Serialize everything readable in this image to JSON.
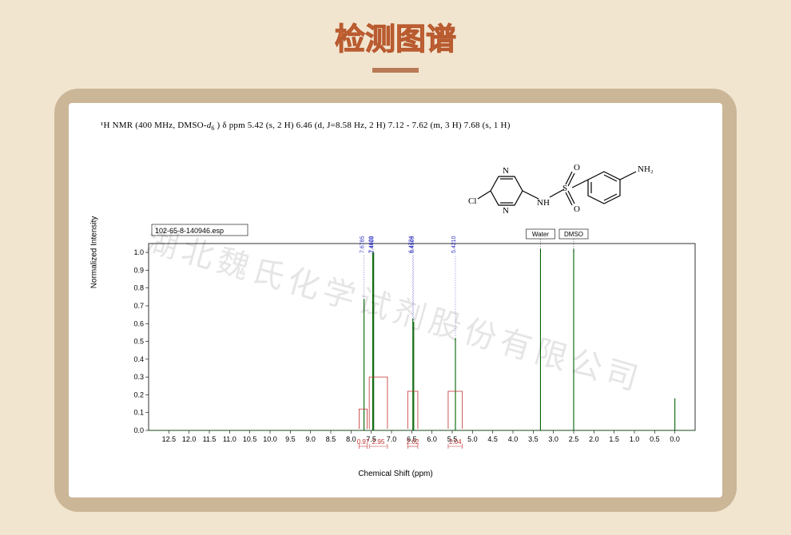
{
  "page": {
    "title": "检测图谱",
    "background_color": "#f2e5d0",
    "panel_color": "#cbb698",
    "title_color": "#d06a3a",
    "underline_color": "#b97a55"
  },
  "watermark": "湖北魏氏化学试剂股份有限公司",
  "nmr_caption": {
    "prefix": "¹H NMR (400 MHz, DMSO-",
    "solvent_italic": "d",
    "solvent_sub": "6",
    "rest": " ) δ ppm 5.42 (s, 2 H) 6.46 (d, J=8.58 Hz, 2 H) 7.12 - 7.62 (m, 3 H) 7.68 (s, 1 H)",
    "j_italic": "J"
  },
  "structure": {
    "cl_label": "Cl",
    "n_label": "N",
    "nh_label": "NH",
    "s_label": "S",
    "o_label": "O",
    "nh2_label": "NH₂",
    "line_color": "#000000",
    "text_color": "#000000"
  },
  "chart": {
    "type": "nmr-spectrum",
    "file_label": "102-65-8-140946.esp",
    "xlabel": "Chemical Shift (ppm)",
    "ylabel": "Normalized Intensity",
    "x_min": -0.5,
    "x_max": 13.0,
    "y_min": 0,
    "y_max": 1.05,
    "x_ticks": [
      12.5,
      12.0,
      11.5,
      11.0,
      10.5,
      10.0,
      9.5,
      9.0,
      8.5,
      8.0,
      7.5,
      7.0,
      6.5,
      6.0,
      5.5,
      5.0,
      4.5,
      4.0,
      3.5,
      3.0,
      2.5,
      2.0,
      1.5,
      1.0,
      0.5,
      0
    ],
    "y_ticks": [
      0,
      0.1,
      0.2,
      0.3,
      0.4,
      0.5,
      0.6,
      0.7,
      0.8,
      0.9,
      1.0
    ],
    "axis_color": "#000000",
    "grid_color": "#e0e0e0",
    "baseline_color": "#000000",
    "peak_color": "#006000",
    "peak_label_color": "#3030c0",
    "integration_color": "#c03030",
    "peaks": [
      {
        "ppm": 7.6785,
        "height": 0.74,
        "label": "7.6785"
      },
      {
        "ppm": 7.4629,
        "height": 1.0,
        "label": "7.4629"
      },
      {
        "ppm": 7.44,
        "height": 1.0,
        "label": "7.4400"
      },
      {
        "ppm": 6.4724,
        "height": 0.63,
        "label": "6.4724"
      },
      {
        "ppm": 6.4509,
        "height": 0.61,
        "label": "6.4509"
      },
      {
        "ppm": 5.421,
        "height": 0.52,
        "label": "5.4210"
      },
      {
        "ppm": 3.32,
        "height": 1.02,
        "label": null,
        "solvent": "Water"
      },
      {
        "ppm": 2.5,
        "height": 1.02,
        "label": null,
        "solvent": "DMSO"
      },
      {
        "ppm": 0.0,
        "height": 0.18,
        "label": null
      }
    ],
    "integrations": [
      {
        "from": 7.8,
        "to": 7.6,
        "value": "0.97",
        "step_h": 0.12
      },
      {
        "from": 7.55,
        "to": 7.1,
        "value": "2.95",
        "step_h": 0.3
      },
      {
        "from": 6.6,
        "to": 6.35,
        "value": "2.02",
        "step_h": 0.22
      },
      {
        "from": 5.6,
        "to": 5.25,
        "value": "2.04",
        "step_h": 0.22
      }
    ],
    "solvent_boxes": [
      {
        "name": "Water",
        "ppm": 3.32
      },
      {
        "name": "DMSO",
        "ppm": 2.5
      }
    ]
  }
}
